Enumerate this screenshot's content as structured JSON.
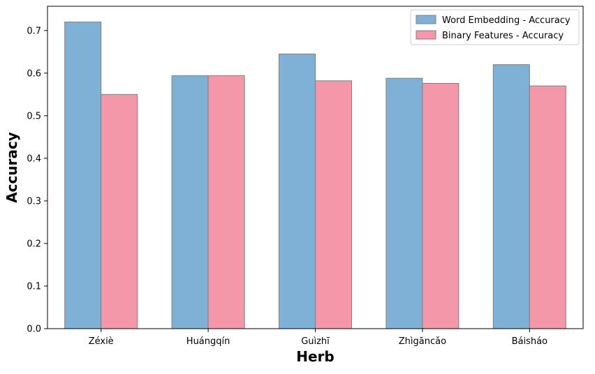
{
  "chart_data": {
    "type": "bar",
    "title": "",
    "xlabel": "Herb",
    "ylabel": "Accuracy",
    "categories": [
      "Zéxiè",
      "Huángqín",
      "Guìzhī",
      "Zhìgāncǎo",
      "Báisháo"
    ],
    "series": [
      {
        "name": "Word Embedding - Accuracy",
        "values": [
          0.72,
          0.594,
          0.645,
          0.588,
          0.62
        ],
        "color": "#7eb1d5"
      },
      {
        "name": "Binary Features - Accuracy",
        "values": [
          0.55,
          0.594,
          0.582,
          0.576,
          0.57
        ],
        "color": "#f497a9"
      }
    ],
    "ylim": [
      0,
      0.757
    ],
    "yticks": [
      "0.0",
      "0.1",
      "0.2",
      "0.3",
      "0.4",
      "0.5",
      "0.6",
      "0.7"
    ],
    "grid": false,
    "legend_position": "top-right",
    "bar_edge_color": "#7f7f7f"
  }
}
